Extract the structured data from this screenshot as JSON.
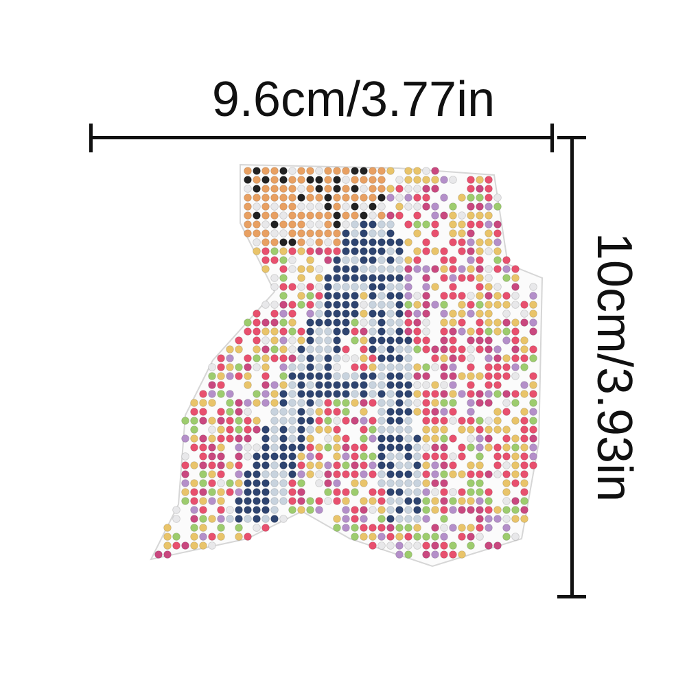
{
  "dimensions": {
    "width_label": "9.6cm/3.77in",
    "height_label": "10cm/3.93in"
  },
  "artwork": {
    "subject": "letter-A-diamond-sticker",
    "colors": {
      "letter": "#2e4470",
      "letter_light": "#c8d3de",
      "pink": "#e8506e",
      "magenta": "#c9487f",
      "lavender": "#b48fc9",
      "yellow": "#e9c46a",
      "green": "#9dcc6e",
      "white": "#e8e8ea",
      "butterfly_orange": "#e8a062",
      "black": "#222222"
    }
  }
}
